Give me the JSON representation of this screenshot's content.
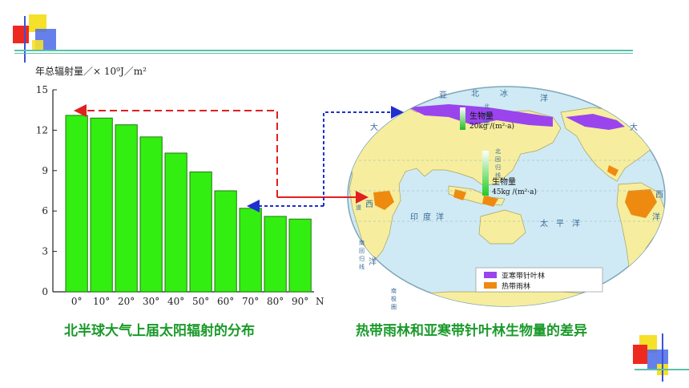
{
  "captions": {
    "left": "北半球大气上届太阳辐射的分布",
    "right": "热带雨林和亚寒带针叶林生物量的差异"
  },
  "colors": {
    "bar": "#33ee11",
    "bar_stroke": "#1f7a10",
    "caption": "#1a9a2a",
    "arrow_red": "#e02020",
    "arrow_blue": "#1f2fd0",
    "ocean": "#cfeaf4",
    "land": "#f6ee9e",
    "boreal": "#9a44ee",
    "tropical": "#ee8a10",
    "deco_line": "#58c0a8"
  },
  "chart_data": {
    "type": "bar",
    "ylabel": "年总辐射量／× 10⁹J／m²",
    "xlabel": "N",
    "categories": [
      "0°",
      "10°",
      "20°",
      "30°",
      "40°",
      "50°",
      "60°",
      "70°",
      "80°",
      "90°"
    ],
    "values": [
      13.1,
      12.9,
      12.4,
      11.5,
      10.3,
      8.9,
      7.5,
      6.2,
      5.6,
      5.4
    ],
    "ylim": [
      0,
      15
    ],
    "yticks": [
      0,
      3,
      6,
      9,
      12,
      15
    ],
    "grid": false,
    "legend": "none"
  },
  "map": {
    "labels": {
      "north_america_top": "北",
      "ya": "亚",
      "bing": "冰",
      "yang_top": "洋",
      "da_left": "大",
      "da_right": "大",
      "xi_right": "西",
      "xi_left": "西",
      "yang_right": "洋",
      "yin": "印",
      "du": "度",
      "yang_indian": "洋",
      "tai": "太",
      "ping": "平",
      "yang_pacific": "洋",
      "yang_left": "洋",
      "tropic_north": "北回归线",
      "tropic_south": "南回归线",
      "chidao": "赤道",
      "south_circle": "南极圈",
      "arctic": "北极圈"
    },
    "boreal_annotation": {
      "label": "生物量",
      "value": "20kg /(m²·a)"
    },
    "tropical_annotation": {
      "label": "生物量",
      "value": "45kg /(m²·a)"
    },
    "legend": [
      {
        "label": "亚寒带针叶林",
        "color": "#9a44ee"
      },
      {
        "label": "热带雨林",
        "color": "#ee8a10"
      }
    ]
  }
}
